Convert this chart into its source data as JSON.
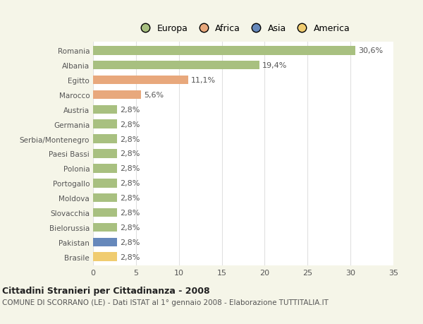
{
  "categories": [
    "Romania",
    "Albania",
    "Egitto",
    "Marocco",
    "Austria",
    "Germania",
    "Serbia/Montenegro",
    "Paesi Bassi",
    "Polonia",
    "Portogallo",
    "Moldova",
    "Slovacchia",
    "Bielorussia",
    "Pakistan",
    "Brasile"
  ],
  "values": [
    30.6,
    19.4,
    11.1,
    5.6,
    2.8,
    2.8,
    2.8,
    2.8,
    2.8,
    2.8,
    2.8,
    2.8,
    2.8,
    2.8,
    2.8
  ],
  "labels": [
    "30,6%",
    "19,4%",
    "11,1%",
    "5,6%",
    "2,8%",
    "2,8%",
    "2,8%",
    "2,8%",
    "2,8%",
    "2,8%",
    "2,8%",
    "2,8%",
    "2,8%",
    "2,8%",
    "2,8%"
  ],
  "colors": [
    "#a8c080",
    "#a8c080",
    "#e8a87c",
    "#e8a87c",
    "#a8c080",
    "#a8c080",
    "#a8c080",
    "#a8c080",
    "#a8c080",
    "#a8c080",
    "#a8c080",
    "#a8c080",
    "#a8c080",
    "#6688bb",
    "#f0cc70"
  ],
  "legend_labels": [
    "Europa",
    "Africa",
    "Asia",
    "America"
  ],
  "legend_colors": [
    "#a8c080",
    "#e8a87c",
    "#6688bb",
    "#f0cc70"
  ],
  "title": "Cittadini Stranieri per Cittadinanza - 2008",
  "subtitle": "COMUNE DI SCORRANO (LE) - Dati ISTAT al 1° gennaio 2008 - Elaborazione TUTTITALIA.IT",
  "xlim": [
    0,
    35
  ],
  "xticks": [
    0,
    5,
    10,
    15,
    20,
    25,
    30,
    35
  ],
  "background_color": "#f5f5e8",
  "plot_bg_color": "#ffffff",
  "grid_color": "#e0e0e0",
  "bar_height": 0.6,
  "text_color": "#555555",
  "label_fontsize": 8.0,
  "ytick_fontsize": 7.5,
  "xtick_fontsize": 8.0
}
